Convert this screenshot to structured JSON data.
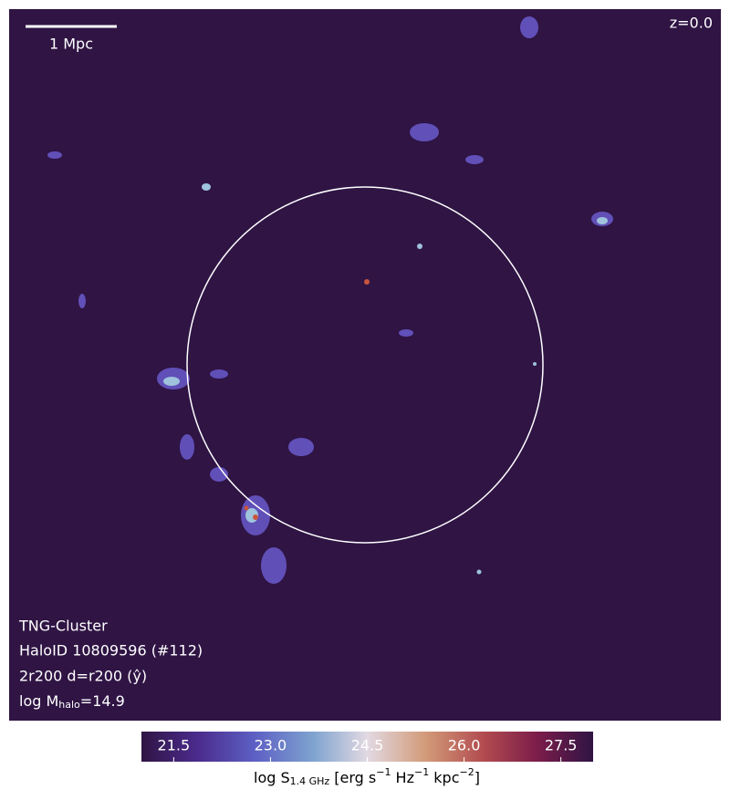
{
  "image": {
    "scale_bar": "1 Mpc",
    "redshift": "z=0.0",
    "annotations": {
      "simulation": "TNG-Cluster",
      "halo_id": "HaloID 10809596 (#112)",
      "projection": "2r200 d=r200 (ŷ)",
      "mass": [
        "log M",
        "halo",
        "=14.9"
      ]
    }
  },
  "colorbar": {
    "lim": [
      21.0,
      28.0
    ],
    "ticks": [
      21.5,
      {
        "value": 23.0,
        "label": "23.0"
      },
      24.5,
      {
        "value": 26.0,
        "label": "26.0"
      },
      27.5
    ],
    "label": [
      "log S",
      "1.4 GHz",
      " [erg s",
      "−1",
      " Hz",
      "−1",
      " kpc",
      "−2",
      "]"
    ]
  }
}
